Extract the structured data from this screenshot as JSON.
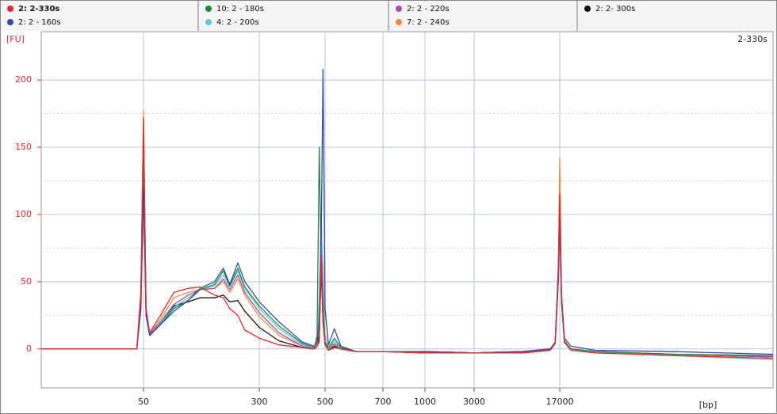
{
  "chart_data": {
    "type": "line",
    "annotation": "2-330s",
    "y_label": "[FU]",
    "x_label": "[bp]",
    "x": [
      10,
      30,
      45,
      48,
      50,
      52,
      55,
      65,
      80,
      100,
      120,
      150,
      172,
      190,
      215,
      240,
      300,
      350,
      420,
      460,
      470,
      478,
      485,
      492,
      500,
      510,
      528,
      548,
      600,
      700,
      1000,
      3000,
      8000,
      14000,
      15500,
      16500,
      17000,
      17600,
      18700,
      21300,
      35000,
      170000,
      1300000
    ],
    "series": [
      {
        "name": "2: 2-330s",
        "color": "#e8262b",
        "values": [
          0,
          0,
          0,
          40,
          172,
          30,
          12,
          25,
          42,
          45,
          46,
          40,
          38,
          30,
          25,
          14,
          8,
          3,
          1,
          0,
          2,
          5,
          70,
          20,
          3,
          -1,
          1,
          0,
          -2,
          -2,
          -3,
          -3,
          -3,
          -1,
          5,
          60,
          115,
          40,
          5,
          -1,
          -3,
          -5,
          -7
        ]
      },
      {
        "name": "2: 2 - 160s",
        "color": "#3548a8",
        "values": [
          0,
          0,
          0,
          30,
          120,
          25,
          10,
          18,
          28,
          36,
          45,
          50,
          60,
          48,
          64,
          50,
          35,
          20,
          5,
          2,
          5,
          20,
          80,
          208,
          30,
          3,
          15,
          2,
          -2,
          -2,
          -2,
          -3,
          -2,
          0,
          5,
          50,
          100,
          40,
          8,
          2,
          -1,
          -2,
          -4
        ]
      },
      {
        "name": "10: 2 - 180s",
        "color": "#1b8a3c",
        "values": [
          0,
          0,
          0,
          35,
          150,
          25,
          10,
          18,
          30,
          36,
          44,
          48,
          58,
          47,
          60,
          46,
          32,
          17,
          4,
          1,
          10,
          150,
          60,
          30,
          5,
          1,
          8,
          1,
          -2,
          -2,
          -2,
          -3,
          -2,
          0,
          4,
          55,
          110,
          35,
          6,
          0,
          -2,
          -4,
          -5
        ]
      },
      {
        "name": "4: 2 - 200s",
        "color": "#5cc8d8",
        "values": [
          0,
          0,
          0,
          30,
          125,
          25,
          10,
          19,
          31,
          38,
          44,
          47,
          55,
          46,
          58,
          45,
          30,
          15,
          3,
          1,
          5,
          40,
          90,
          60,
          10,
          0,
          6,
          0,
          -2,
          -2,
          -2,
          -3,
          -2,
          0,
          4,
          50,
          105,
          35,
          5,
          0,
          -2,
          -5,
          -8
        ]
      },
      {
        "name": "2: 2 - 220s",
        "color": "#b04aa8",
        "values": [
          0,
          0,
          0,
          35,
          140,
          25,
          11,
          20,
          33,
          40,
          44,
          45,
          52,
          44,
          55,
          42,
          27,
          12,
          2,
          0,
          5,
          30,
          100,
          40,
          5,
          0,
          4,
          0,
          -2,
          -2,
          -2,
          -3,
          -2,
          0,
          4,
          50,
          110,
          35,
          5,
          0,
          -2,
          -4,
          -6
        ]
      },
      {
        "name": "7: 2 - 240s",
        "color": "#f08a3a",
        "values": [
          0,
          0,
          0,
          45,
          177,
          30,
          11,
          22,
          38,
          42,
          44,
          45,
          50,
          42,
          52,
          40,
          24,
          10,
          2,
          0,
          3,
          20,
          90,
          30,
          4,
          0,
          3,
          0,
          -2,
          -2,
          -2,
          -3,
          -2,
          0,
          4,
          55,
          142,
          40,
          5,
          0,
          -2,
          -4,
          -6
        ]
      },
      {
        "name": "2: 2- 300s",
        "color": "#111111",
        "values": [
          0,
          0,
          0,
          40,
          165,
          28,
          10,
          20,
          32,
          35,
          38,
          38,
          40,
          35,
          36,
          28,
          16,
          6,
          1,
          0,
          2,
          10,
          60,
          20,
          3,
          -1,
          2,
          0,
          -2,
          -2,
          -3,
          -3,
          -3,
          -1,
          4,
          50,
          100,
          35,
          5,
          0,
          -2,
          -4,
          -6
        ]
      }
    ],
    "xlim": [
      10,
      1300000
    ],
    "xticks": [
      50,
      300,
      500,
      700,
      1000,
      3000,
      17000
    ],
    "ylim": [
      -29,
      236
    ],
    "yticks": [
      0,
      50,
      100,
      150,
      200
    ],
    "grid": true
  }
}
